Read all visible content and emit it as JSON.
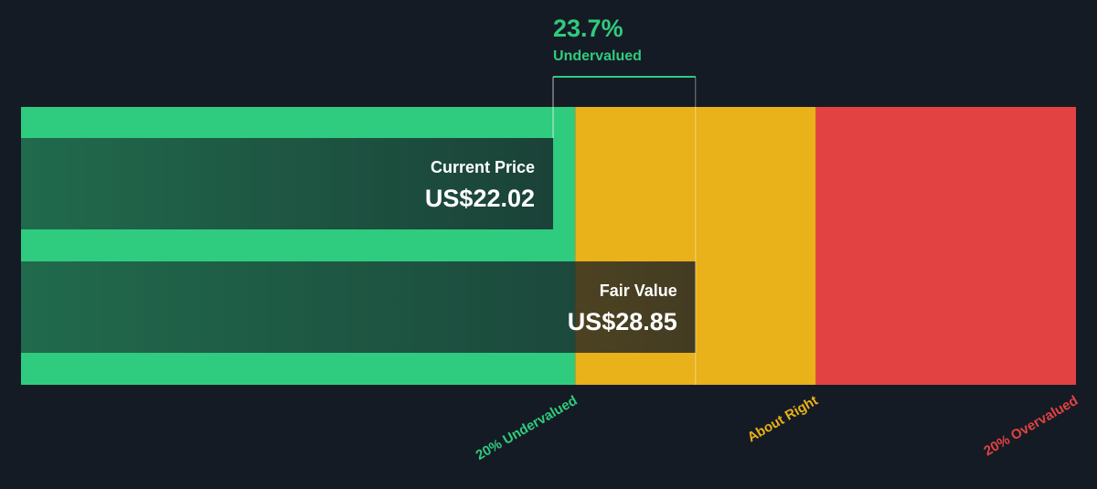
{
  "chart_data": {
    "type": "valuation",
    "xlim": [
      -3.5,
      47.1
    ],
    "categories": [
      "Current Price",
      "Fair Value"
    ],
    "values": [
      22.02,
      28.85
    ],
    "value_labels": [
      "US$22.02",
      "US$28.85"
    ],
    "annotation": {
      "value": 23.7,
      "label": "23.7%",
      "text": "Undervalued",
      "color": "#2fcb7f"
    },
    "zones": [
      {
        "label": "20% Undervalued",
        "color": "#2fcb7f",
        "start": -3.5,
        "end": 23.08
      },
      {
        "label": "About Right",
        "color": "#e9b11a",
        "start": 23.08,
        "end": 34.62
      },
      {
        "label": "20% Overvalued",
        "color": "#e34242",
        "start": 34.62,
        "end": 47.1
      }
    ]
  }
}
